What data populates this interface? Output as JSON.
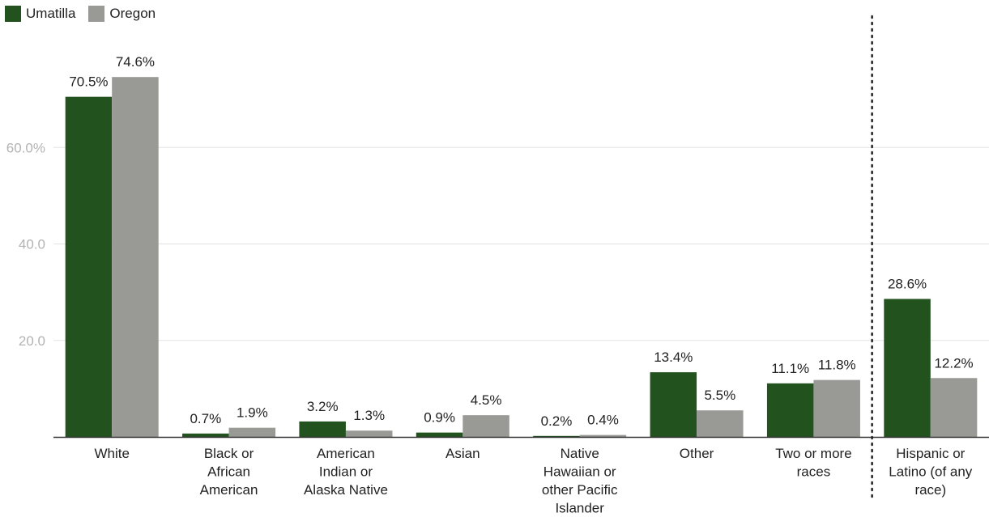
{
  "chart_data": {
    "type": "bar",
    "categories": [
      "White",
      "Black or African American",
      "American Indian or Alaska Native",
      "Asian",
      "Native Hawaiian or other Pacific Islander",
      "Other",
      "Two or more races",
      "Hispanic or Latino (of any race)"
    ],
    "category_label_lines": [
      [
        "White"
      ],
      [
        "Black or",
        "African",
        "American"
      ],
      [
        "American",
        "Indian or",
        "Alaska Native"
      ],
      [
        "Asian"
      ],
      [
        "Native",
        "Hawaiian or",
        "other Pacific",
        "Islander"
      ],
      [
        "Other"
      ],
      [
        "Two or more",
        "races"
      ],
      [
        "Hispanic or",
        "Latino (of any",
        "race)"
      ]
    ],
    "series": [
      {
        "name": "Umatilla",
        "color": "#22531f",
        "values": [
          70.5,
          0.7,
          3.2,
          0.9,
          0.2,
          13.4,
          11.1,
          28.6
        ],
        "labels": [
          "70.5%",
          "0.7%",
          "3.2%",
          "0.9%",
          "0.2%",
          "13.4%",
          "11.1%",
          "28.6%"
        ]
      },
      {
        "name": "Oregon",
        "color": "#999a95",
        "values": [
          74.6,
          1.9,
          1.3,
          4.5,
          0.4,
          5.5,
          11.8,
          12.2
        ],
        "labels": [
          "74.6%",
          "1.9%",
          "1.3%",
          "4.5%",
          "0.4%",
          "5.5%",
          "11.8%",
          "12.2%"
        ]
      }
    ],
    "y_ticks": [
      20,
      40,
      60
    ],
    "y_tick_labels": [
      "20.0",
      "40.0",
      "60.0%"
    ],
    "ylim": [
      0,
      80
    ],
    "grid": true,
    "legend_position": "top-left",
    "separator_before_category": 7,
    "title": "",
    "xlabel": "",
    "ylabel": ""
  }
}
